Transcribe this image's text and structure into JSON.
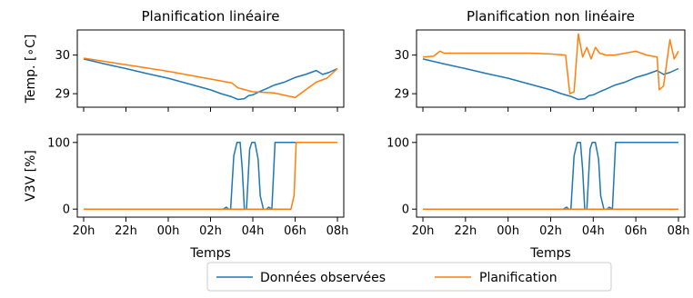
{
  "chart_data": [
    {
      "type": "line",
      "panel": "top-left",
      "title": "Planification linéaire",
      "ylabel": "Temp. [∘C]",
      "xlabel": "",
      "ylim": [
        28.65,
        30.65
      ],
      "yticks": [
        29,
        30
      ],
      "xticks": [
        "20h",
        "22h",
        "00h",
        "02h",
        "04h",
        "06h",
        "08h"
      ],
      "xtick_values": [
        0,
        2,
        4,
        6,
        8,
        10,
        12
      ],
      "xlim": [
        -0.3,
        12.3
      ],
      "series": [
        {
          "key": "obs",
          "x": [
            0,
            1,
            2,
            3,
            4,
            5,
            6,
            6.5,
            7,
            7.3,
            7.6,
            7.8,
            8,
            8.3,
            8.6,
            9,
            9.5,
            10,
            10.5,
            11,
            11.3,
            11.6,
            12
          ],
          "values": [
            29.9,
            29.77,
            29.65,
            29.52,
            29.4,
            29.25,
            29.1,
            29.0,
            28.92,
            28.85,
            28.87,
            28.95,
            28.97,
            29.05,
            29.12,
            29.22,
            29.3,
            29.42,
            29.5,
            29.6,
            29.5,
            29.55,
            29.65
          ]
        },
        {
          "key": "plan",
          "x": [
            0,
            2,
            4,
            6,
            7,
            7.3,
            8,
            9,
            10,
            10.5,
            11,
            11.5,
            12
          ],
          "values": [
            29.92,
            29.75,
            29.58,
            29.38,
            29.28,
            29.15,
            29.05,
            29.02,
            28.9,
            29.1,
            29.3,
            29.4,
            29.65
          ]
        }
      ]
    },
    {
      "type": "line",
      "panel": "top-right",
      "title": "Planification non linéaire",
      "ylabel": "",
      "xlabel": "",
      "ylim": [
        28.65,
        30.65
      ],
      "yticks": [
        29,
        30
      ],
      "xticks": [
        "20h",
        "22h",
        "00h",
        "02h",
        "04h",
        "06h",
        "08h"
      ],
      "xtick_values": [
        0,
        2,
        4,
        6,
        8,
        10,
        12
      ],
      "xlim": [
        -0.3,
        12.3
      ],
      "series": [
        {
          "key": "obs",
          "x": [
            0,
            1,
            2,
            3,
            4,
            5,
            6,
            6.5,
            7,
            7.3,
            7.6,
            7.8,
            8,
            8.3,
            8.6,
            9,
            9.5,
            10,
            10.5,
            11,
            11.3,
            11.6,
            12
          ],
          "values": [
            29.9,
            29.77,
            29.65,
            29.52,
            29.4,
            29.25,
            29.1,
            29.0,
            28.92,
            28.85,
            28.87,
            28.95,
            28.97,
            29.05,
            29.12,
            29.22,
            29.3,
            29.42,
            29.5,
            29.6,
            29.5,
            29.55,
            29.65
          ]
        },
        {
          "key": "plan",
          "x": [
            0,
            0.5,
            0.8,
            1.0,
            1.5,
            2,
            3,
            4,
            5,
            6,
            6.7,
            6.9,
            7.1,
            7.3,
            7.5,
            7.7,
            7.9,
            8.1,
            8.3,
            8.6,
            9,
            9.5,
            10,
            10.5,
            11,
            11.1,
            11.3,
            11.6,
            11.8,
            12
          ],
          "values": [
            29.95,
            29.97,
            30.1,
            30.05,
            30.05,
            30.05,
            30.05,
            30.05,
            30.05,
            30.03,
            30.0,
            29.0,
            29.05,
            30.55,
            29.95,
            30.2,
            29.9,
            30.2,
            30.05,
            30.0,
            30.0,
            30.05,
            30.1,
            30.0,
            29.95,
            29.1,
            29.2,
            30.4,
            29.9,
            30.1
          ]
        }
      ]
    },
    {
      "type": "line",
      "panel": "bottom-left",
      "title": "",
      "ylabel": "V3V [%]",
      "xlabel": "Temps",
      "ylim": [
        -12,
        112
      ],
      "yticks": [
        0,
        100
      ],
      "xticks": [
        "20h",
        "22h",
        "00h",
        "02h",
        "04h",
        "06h",
        "08h"
      ],
      "xtick_values": [
        0,
        2,
        4,
        6,
        8,
        10,
        12
      ],
      "xlim": [
        -0.3,
        12.3
      ],
      "series": [
        {
          "key": "obs",
          "x": [
            0,
            6.6,
            6.75,
            6.85,
            6.95,
            7.1,
            7.25,
            7.4,
            7.5,
            7.6,
            7.7,
            7.85,
            7.95,
            8.1,
            8.25,
            8.35,
            8.5,
            8.65,
            8.75,
            8.9,
            9.05,
            9.2,
            12
          ],
          "values": [
            0,
            0,
            3,
            0,
            0,
            80,
            100,
            100,
            60,
            0,
            0,
            90,
            100,
            100,
            75,
            20,
            0,
            0,
            3,
            0,
            100,
            100,
            100
          ]
        },
        {
          "key": "plan",
          "x": [
            0,
            9.8,
            9.95,
            10.05,
            10.15,
            12
          ],
          "values": [
            0,
            0,
            20,
            100,
            100,
            100
          ]
        }
      ]
    },
    {
      "type": "line",
      "panel": "bottom-right",
      "title": "",
      "ylabel": "",
      "xlabel": "Temps",
      "ylim": [
        -12,
        112
      ],
      "yticks": [
        0,
        100
      ],
      "xticks": [
        "20h",
        "22h",
        "00h",
        "02h",
        "04h",
        "06h",
        "08h"
      ],
      "xtick_values": [
        0,
        2,
        4,
        6,
        8,
        10,
        12
      ],
      "xlim": [
        -0.3,
        12.3
      ],
      "series": [
        {
          "key": "obs",
          "x": [
            0,
            6.6,
            6.75,
            6.85,
            6.95,
            7.1,
            7.25,
            7.4,
            7.5,
            7.6,
            7.7,
            7.85,
            7.95,
            8.1,
            8.25,
            8.35,
            8.5,
            8.65,
            8.75,
            8.9,
            9.05,
            9.2,
            12
          ],
          "values": [
            0,
            0,
            3,
            0,
            0,
            80,
            100,
            100,
            60,
            0,
            0,
            90,
            100,
            100,
            75,
            20,
            0,
            0,
            3,
            0,
            100,
            100,
            100
          ]
        },
        {
          "key": "plan",
          "x": [
            0,
            12
          ],
          "values": [
            0,
            0
          ]
        }
      ]
    }
  ],
  "legend": {
    "placement": "bottom-center",
    "items": [
      {
        "key": "obs",
        "label": "Données observées",
        "color": "#1f77b4"
      },
      {
        "key": "plan",
        "label": "Planification",
        "color": "#ff7f0e"
      }
    ]
  }
}
